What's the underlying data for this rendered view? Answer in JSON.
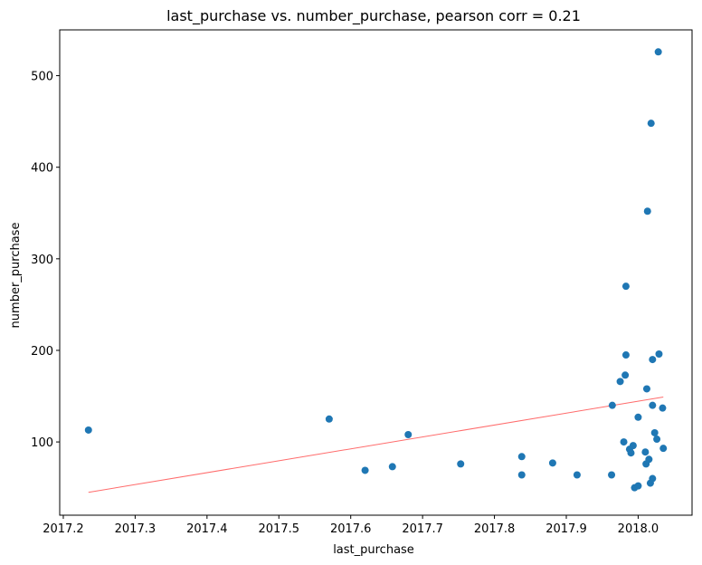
{
  "chart_data": {
    "type": "scatter",
    "title": "last_purchase vs. number_purchase, pearson corr = 0.21",
    "xlabel": "last_purchase",
    "ylabel": "number_purchase",
    "xlim": [
      2017.195,
      2018.075
    ],
    "ylim": [
      20,
      550
    ],
    "xticks": [
      2017.2,
      2017.3,
      2017.4,
      2017.5,
      2017.6,
      2017.7,
      2017.8,
      2017.9,
      2018.0
    ],
    "xtick_labels": [
      "2017.2",
      "2017.3",
      "2017.4",
      "2017.5",
      "2017.6",
      "2017.7",
      "2017.8",
      "2017.9",
      "2018.0"
    ],
    "yticks": [
      100,
      200,
      300,
      400,
      500
    ],
    "ytick_labels": [
      "100",
      "200",
      "300",
      "400",
      "500"
    ],
    "grid": false,
    "point_color": "#1f77b4",
    "trendline_color": "#ff6b6b",
    "trendline": {
      "x": [
        2017.235,
        2018.035
      ],
      "y": [
        45,
        149
      ]
    },
    "points": [
      {
        "x": 2017.235,
        "y": 113
      },
      {
        "x": 2017.57,
        "y": 125
      },
      {
        "x": 2017.62,
        "y": 69
      },
      {
        "x": 2017.658,
        "y": 73
      },
      {
        "x": 2017.68,
        "y": 108
      },
      {
        "x": 2017.753,
        "y": 76
      },
      {
        "x": 2017.838,
        "y": 84
      },
      {
        "x": 2017.838,
        "y": 64
      },
      {
        "x": 2017.881,
        "y": 77
      },
      {
        "x": 2017.915,
        "y": 64
      },
      {
        "x": 2017.963,
        "y": 64
      },
      {
        "x": 2017.964,
        "y": 140
      },
      {
        "x": 2017.975,
        "y": 166
      },
      {
        "x": 2017.98,
        "y": 100
      },
      {
        "x": 2017.982,
        "y": 173
      },
      {
        "x": 2017.983,
        "y": 195
      },
      {
        "x": 2017.983,
        "y": 270
      },
      {
        "x": 2017.988,
        "y": 92
      },
      {
        "x": 2017.99,
        "y": 88
      },
      {
        "x": 2017.993,
        "y": 96
      },
      {
        "x": 2017.995,
        "y": 50
      },
      {
        "x": 2018.0,
        "y": 127
      },
      {
        "x": 2018.0,
        "y": 52
      },
      {
        "x": 2018.01,
        "y": 89
      },
      {
        "x": 2018.011,
        "y": 76
      },
      {
        "x": 2018.012,
        "y": 158
      },
      {
        "x": 2018.013,
        "y": 352
      },
      {
        "x": 2018.015,
        "y": 81
      },
      {
        "x": 2018.017,
        "y": 55
      },
      {
        "x": 2018.018,
        "y": 448
      },
      {
        "x": 2018.02,
        "y": 60
      },
      {
        "x": 2018.02,
        "y": 140
      },
      {
        "x": 2018.02,
        "y": 190
      },
      {
        "x": 2018.023,
        "y": 110
      },
      {
        "x": 2018.026,
        "y": 103
      },
      {
        "x": 2018.028,
        "y": 526
      },
      {
        "x": 2018.029,
        "y": 196
      },
      {
        "x": 2018.034,
        "y": 137
      },
      {
        "x": 2018.035,
        "y": 93
      }
    ]
  }
}
